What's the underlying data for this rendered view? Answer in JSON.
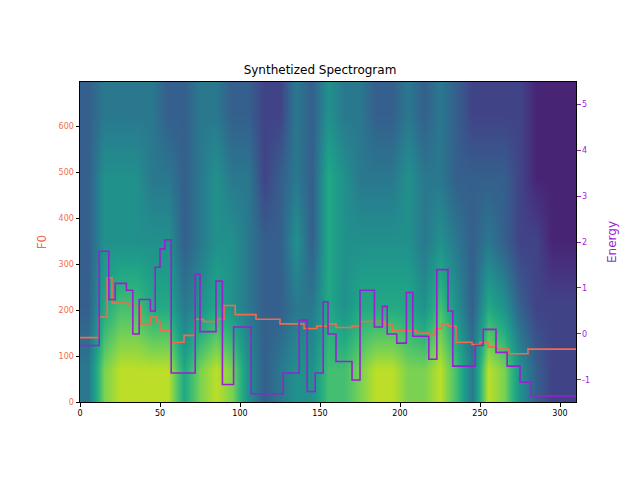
{
  "chart_data": {
    "type": "line",
    "title": "Synthetized Spectrogram",
    "y_label": "F0",
    "y2_label": "Energy",
    "xlim": [
      0,
      310
    ],
    "xticks": [
      0,
      50,
      100,
      150,
      200,
      250,
      300
    ],
    "ylim": [
      0,
      696
    ],
    "yticks": [
      0,
      100,
      200,
      300,
      400,
      500,
      600
    ],
    "y2lim": [
      -1.48,
      5.48
    ],
    "y2ticks": [
      -1,
      0,
      1,
      2,
      3,
      4,
      5
    ],
    "grid": false,
    "spectrogram": {
      "x": [
        5,
        15,
        25,
        35,
        45,
        55,
        65,
        75,
        85,
        95,
        105,
        115,
        125,
        135,
        145,
        155,
        165,
        175,
        185,
        195,
        205,
        215,
        225,
        235,
        245,
        255,
        265,
        275,
        285,
        295,
        305
      ],
      "y": [
        69.6,
        208.8,
        348,
        487.2,
        626.4
      ],
      "zlim": [
        0,
        1
      ],
      "z": [
        [
          0.4,
          0.8,
          0.9,
          0.9,
          0.9,
          0.9,
          0.6,
          0.8,
          0.9,
          0.8,
          0.5,
          0.3,
          0.4,
          0.5,
          0.5,
          0.7,
          0.7,
          0.8,
          0.9,
          0.9,
          0.8,
          0.8,
          0.9,
          0.7,
          0.4,
          0.9,
          0.8,
          0.5,
          0.3,
          0.2,
          0.2
        ],
        [
          0.3,
          0.6,
          0.7,
          0.7,
          0.6,
          0.6,
          0.4,
          0.5,
          0.6,
          0.5,
          0.4,
          0.3,
          0.3,
          0.4,
          0.4,
          0.6,
          0.5,
          0.6,
          0.6,
          0.6,
          0.6,
          0.5,
          0.7,
          0.5,
          0.3,
          0.6,
          0.5,
          0.3,
          0.2,
          0.2,
          0.2
        ],
        [
          0.3,
          0.5,
          0.5,
          0.5,
          0.5,
          0.5,
          0.3,
          0.4,
          0.5,
          0.5,
          0.4,
          0.3,
          0.3,
          0.5,
          0.3,
          0.6,
          0.5,
          0.5,
          0.5,
          0.5,
          0.5,
          0.4,
          0.5,
          0.4,
          0.3,
          0.4,
          0.3,
          0.2,
          0.2,
          0.1,
          0.1
        ],
        [
          0.3,
          0.5,
          0.5,
          0.5,
          0.4,
          0.4,
          0.3,
          0.4,
          0.5,
          0.4,
          0.4,
          0.2,
          0.3,
          0.4,
          0.3,
          0.6,
          0.5,
          0.4,
          0.4,
          0.4,
          0.5,
          0.4,
          0.4,
          0.3,
          0.3,
          0.3,
          0.3,
          0.2,
          0.1,
          0.1,
          0.1
        ],
        [
          0.3,
          0.4,
          0.4,
          0.4,
          0.4,
          0.3,
          0.3,
          0.4,
          0.4,
          0.3,
          0.3,
          0.2,
          0.2,
          0.4,
          0.3,
          0.5,
          0.4,
          0.4,
          0.3,
          0.3,
          0.4,
          0.3,
          0.4,
          0.3,
          0.2,
          0.2,
          0.2,
          0.2,
          0.1,
          0.1,
          0.1
        ]
      ]
    },
    "series": [
      {
        "name": "F0",
        "color": "#f26b4b",
        "axis": "y",
        "line_style": "step",
        "x": [
          0,
          12,
          17,
          20,
          30,
          38,
          44,
          48,
          50,
          57,
          65,
          72,
          77,
          86,
          90,
          97,
          110,
          125,
          140,
          148,
          155,
          160,
          170,
          175,
          190,
          195,
          210,
          218,
          222,
          226,
          230,
          235,
          245,
          250,
          255,
          260,
          268,
          280,
          310
        ],
        "values": [
          140,
          185,
          270,
          215,
          210,
          170,
          185,
          175,
          155,
          130,
          145,
          180,
          175,
          180,
          210,
          190,
          180,
          170,
          160,
          165,
          170,
          162,
          165,
          175,
          170,
          155,
          150,
          145,
          160,
          170,
          165,
          130,
          125,
          130,
          120,
          115,
          105,
          115,
          115
        ]
      },
      {
        "name": "Energy",
        "color": "#9c1fd1",
        "axis": "y2",
        "line_style": "step",
        "x": [
          0,
          12,
          18,
          22,
          29,
          33,
          37,
          44,
          47,
          50,
          53,
          57,
          72,
          75,
          85,
          89,
          96,
          107,
          127,
          137,
          142,
          147,
          152,
          155,
          160,
          170,
          175,
          184,
          189,
          192,
          198,
          204,
          208,
          218,
          223,
          230,
          233,
          247,
          252,
          260,
          267,
          275,
          282,
          310
        ],
        "values": [
          -0.25,
          1.8,
          0.75,
          1.1,
          0.95,
          0,
          0.75,
          0.5,
          1.45,
          1.85,
          2.05,
          -0.85,
          1.3,
          0.05,
          1.15,
          -1.1,
          0.15,
          -1.3,
          -0.85,
          0.3,
          -1.25,
          -0.85,
          0.7,
          0,
          -0.6,
          -1.0,
          0.95,
          0.15,
          0.6,
          0,
          -0.2,
          0.9,
          -0.05,
          -0.55,
          1.4,
          0.5,
          -0.7,
          -0.25,
          0.1,
          -0.4,
          -0.7,
          -1.05,
          -1.35,
          -1.35
        ]
      }
    ]
  }
}
